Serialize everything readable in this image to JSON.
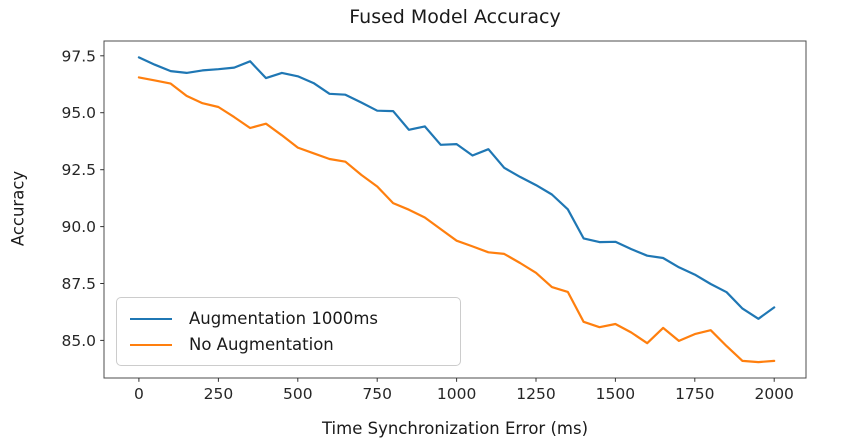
{
  "chart_data": {
    "type": "line",
    "title": "Fused Model Accuracy",
    "xlabel": "Time Synchronization Error (ms)",
    "ylabel": "Accuracy",
    "grid": false,
    "legend_position": "lower-left",
    "xlim": [
      -110,
      2100
    ],
    "ylim": [
      83.35,
      98.15
    ],
    "x_ticks": [
      0,
      250,
      500,
      750,
      1000,
      1250,
      1500,
      1750,
      2000
    ],
    "y_ticks": [
      "97.5",
      "95.0",
      "92.5",
      "90.0",
      "87.5",
      "85.0"
    ],
    "x": [
      0,
      50,
      100,
      150,
      200,
      250,
      300,
      350,
      400,
      450,
      500,
      550,
      600,
      650,
      700,
      750,
      800,
      850,
      900,
      950,
      1000,
      1050,
      1100,
      1150,
      1200,
      1250,
      1300,
      1350,
      1400,
      1450,
      1500,
      1550,
      1600,
      1650,
      1700,
      1750,
      1800,
      1850,
      1900,
      1950,
      2000
    ],
    "series": [
      {
        "name": "Augmentation 1000ms",
        "color": "#1f77b4",
        "values": [
          97.43,
          97.11,
          96.83,
          96.75,
          96.86,
          96.91,
          96.98,
          97.26,
          96.52,
          96.75,
          96.6,
          96.3,
          95.83,
          95.79,
          95.45,
          95.09,
          95.07,
          94.25,
          94.4,
          93.59,
          93.62,
          93.12,
          93.4,
          92.58,
          92.18,
          91.82,
          91.41,
          90.76,
          89.48,
          89.32,
          89.33,
          89.01,
          88.72,
          88.62,
          88.21,
          87.89,
          87.48,
          87.12,
          86.4,
          85.95,
          86.45
        ]
      },
      {
        "name": "No Augmentation",
        "color": "#ff7f0e",
        "values": [
          96.55,
          96.42,
          96.28,
          95.74,
          95.42,
          95.25,
          94.81,
          94.33,
          94.52,
          94.01,
          93.47,
          93.22,
          92.97,
          92.85,
          92.27,
          91.76,
          91.03,
          90.74,
          90.4,
          89.89,
          89.38,
          89.13,
          88.87,
          88.8,
          88.4,
          87.97,
          87.34,
          87.13,
          85.82,
          85.58,
          85.72,
          85.35,
          84.88,
          85.55,
          84.98,
          85.28,
          85.45,
          84.75,
          84.1,
          84.05,
          84.1
        ]
      }
    ]
  },
  "style": {
    "spine_color": "#4c4c4c",
    "tick_color": "#333333",
    "tick_label_color": "#262626",
    "line_width": 2.2
  }
}
